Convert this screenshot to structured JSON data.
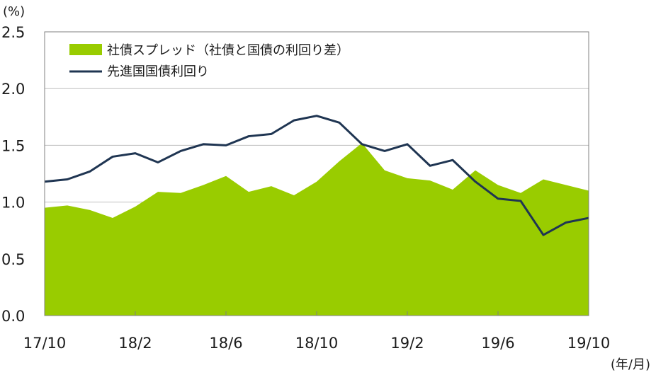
{
  "chart_data": {
    "type": "area+line",
    "y_unit_label": "(%)",
    "x_unit_label": "(年/月)",
    "ylim": [
      0,
      2.5
    ],
    "y_ticks": [
      "0.0",
      "0.5",
      "1.0",
      "1.5",
      "2.0",
      "2.5"
    ],
    "x_ticks": [
      "17/10",
      "18/2",
      "18/6",
      "18/10",
      "19/2",
      "19/6",
      "19/10"
    ],
    "x_tick_index": [
      0,
      4,
      8,
      12,
      16,
      20,
      24
    ],
    "categories": [
      "17/10",
      "17/11",
      "17/12",
      "18/1",
      "18/2",
      "18/3",
      "18/4",
      "18/5",
      "18/6",
      "18/7",
      "18/8",
      "18/9",
      "18/10",
      "18/11",
      "18/12",
      "19/1",
      "19/2",
      "19/3",
      "19/4",
      "19/5",
      "19/6",
      "19/7",
      "19/8",
      "19/9",
      "19/10"
    ],
    "grid": true,
    "series": [
      {
        "name": "社債スプレッド（社債と国債の利回り差）",
        "kind": "area",
        "color": "#99cc00",
        "values": [
          0.95,
          0.97,
          0.93,
          0.86,
          0.96,
          1.09,
          1.08,
          1.15,
          1.23,
          1.09,
          1.14,
          1.06,
          1.18,
          1.36,
          1.52,
          1.28,
          1.21,
          1.19,
          1.11,
          1.28,
          1.15,
          1.08,
          1.2,
          1.15,
          1.1
        ]
      },
      {
        "name": "先進国国債利回り",
        "kind": "line",
        "color": "#1f3552",
        "values": [
          1.18,
          1.2,
          1.27,
          1.4,
          1.43,
          1.35,
          1.45,
          1.51,
          1.5,
          1.58,
          1.6,
          1.72,
          1.76,
          1.7,
          1.51,
          1.45,
          1.51,
          1.32,
          1.37,
          1.18,
          1.03,
          1.01,
          0.71,
          0.82,
          0.86
        ]
      }
    ]
  }
}
